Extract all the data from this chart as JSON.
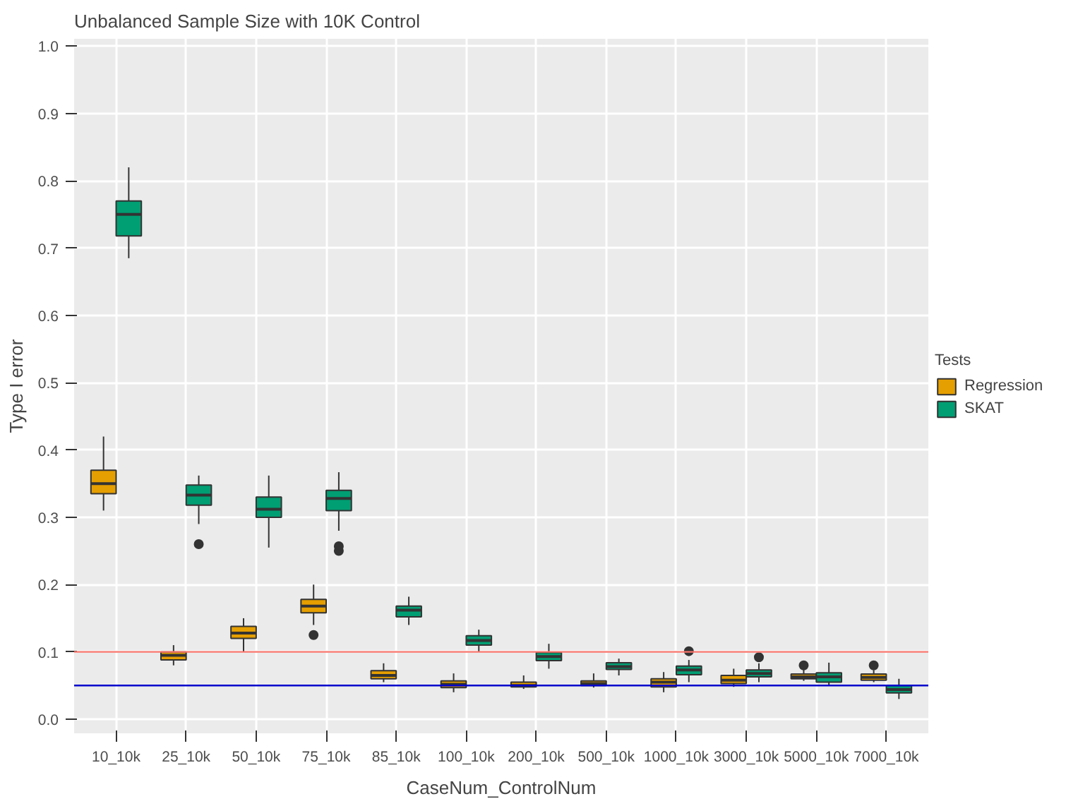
{
  "chart_data": {
    "type": "box",
    "title": "Unbalanced Sample Size with 10K Control",
    "xlabel": "CaseNum_ControlNum",
    "ylabel": "Type I error",
    "legend_title": "Tests",
    "categories": [
      "10_10k",
      "25_10k",
      "50_10k",
      "75_10k",
      "85_10k",
      "100_10k",
      "200_10k",
      "500_10k",
      "1000_10k",
      "3000_10k",
      "5000_10k",
      "7000_10k"
    ],
    "ylim": [
      -0.021,
      1.011
    ],
    "yticks": [
      {
        "value": 0,
        "label": "0.0"
      },
      0.1,
      0.2,
      0.3,
      0.4,
      0.5,
      0.6,
      0.7,
      0.8,
      0.9,
      {
        "value": 1,
        "label": "1.0"
      }
    ],
    "grid": true,
    "legend": "right",
    "ref_lines": [
      {
        "axis": "y",
        "value": 0.1,
        "color": "#f8766d"
      },
      {
        "axis": "y",
        "value": 0.05,
        "color": "#0000cc"
      }
    ],
    "series": [
      {
        "name": "Regression",
        "color": "#e69f00",
        "boxes": [
          {
            "low": 0.31,
            "q1": 0.335,
            "median": 0.35,
            "q3": 0.37,
            "high": 0.42
          },
          {
            "low": 0.08,
            "q1": 0.088,
            "median": 0.095,
            "q3": 0.1,
            "high": 0.11
          },
          {
            "low": 0.1,
            "q1": 0.12,
            "median": 0.128,
            "q3": 0.138,
            "high": 0.15
          },
          {
            "low": 0.14,
            "q1": 0.158,
            "median": 0.168,
            "q3": 0.178,
            "high": 0.2,
            "outliers": [
              0.125
            ]
          },
          {
            "low": 0.055,
            "q1": 0.06,
            "median": 0.065,
            "q3": 0.072,
            "high": 0.083
          },
          {
            "low": 0.04,
            "q1": 0.047,
            "median": 0.052,
            "q3": 0.057,
            "high": 0.068
          },
          {
            "low": 0.045,
            "q1": 0.048,
            "median": 0.05,
            "q3": 0.055,
            "high": 0.065
          },
          {
            "low": 0.047,
            "q1": 0.05,
            "median": 0.053,
            "q3": 0.057,
            "high": 0.068
          },
          {
            "low": 0.04,
            "q1": 0.048,
            "median": 0.055,
            "q3": 0.06,
            "high": 0.07
          },
          {
            "low": 0.048,
            "q1": 0.053,
            "median": 0.058,
            "q3": 0.065,
            "high": 0.075
          },
          {
            "low": 0.057,
            "q1": 0.06,
            "median": 0.063,
            "q3": 0.067,
            "high": 0.075,
            "outliers": [
              0.08
            ]
          },
          {
            "low": 0.055,
            "q1": 0.058,
            "median": 0.062,
            "q3": 0.067,
            "high": 0.073,
            "outliers": [
              0.08
            ]
          }
        ]
      },
      {
        "name": "SKAT",
        "color": "#009e73",
        "boxes": [
          {
            "low": 0.685,
            "q1": 0.718,
            "median": 0.75,
            "q3": 0.77,
            "high": 0.82
          },
          {
            "low": 0.29,
            "q1": 0.318,
            "median": 0.333,
            "q3": 0.348,
            "high": 0.362,
            "outliers": [
              0.26
            ]
          },
          {
            "low": 0.255,
            "q1": 0.3,
            "median": 0.312,
            "q3": 0.33,
            "high": 0.362
          },
          {
            "low": 0.28,
            "q1": 0.31,
            "median": 0.328,
            "q3": 0.34,
            "high": 0.367,
            "outliers": [
              0.25,
              0.257
            ]
          },
          {
            "low": 0.14,
            "q1": 0.152,
            "median": 0.162,
            "q3": 0.168,
            "high": 0.182
          },
          {
            "low": 0.1,
            "q1": 0.11,
            "median": 0.117,
            "q3": 0.124,
            "high": 0.133
          },
          {
            "low": 0.075,
            "q1": 0.087,
            "median": 0.093,
            "q3": 0.099,
            "high": 0.112
          },
          {
            "low": 0.065,
            "q1": 0.074,
            "median": 0.078,
            "q3": 0.084,
            "high": 0.09
          },
          {
            "low": 0.055,
            "q1": 0.066,
            "median": 0.073,
            "q3": 0.079,
            "high": 0.088,
            "outliers": [
              0.101
            ]
          },
          {
            "low": 0.055,
            "q1": 0.063,
            "median": 0.068,
            "q3": 0.073,
            "high": 0.083,
            "outliers": [
              0.092
            ]
          },
          {
            "low": 0.05,
            "q1": 0.055,
            "median": 0.063,
            "q3": 0.069,
            "high": 0.084
          },
          {
            "low": 0.03,
            "q1": 0.039,
            "median": 0.044,
            "q3": 0.05,
            "high": 0.06
          }
        ]
      }
    ]
  }
}
